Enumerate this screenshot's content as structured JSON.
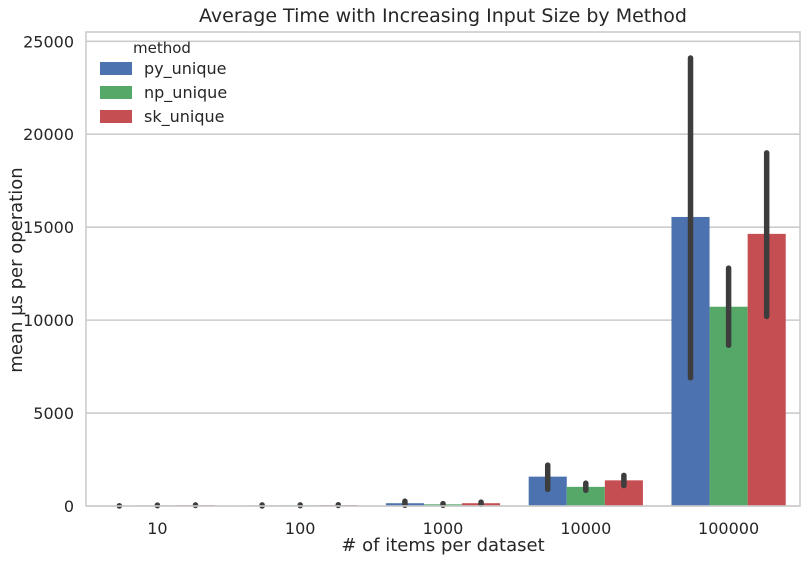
{
  "chart_data": {
    "type": "bar",
    "title": "Average Time with Increasing Input Size by Method",
    "xlabel": "# of items per dataset",
    "ylabel": "mean µs per operation",
    "categories": [
      "10",
      "100",
      "1000",
      "10000",
      "100000"
    ],
    "ylim": [
      0,
      25500
    ],
    "yticks": [
      0,
      5000,
      10000,
      15000,
      20000,
      25000
    ],
    "grid": "horizontal",
    "legend": {
      "title": "method",
      "placement": "top-left"
    },
    "series": [
      {
        "name": "py_unique",
        "color": "#4c72b0",
        "values": [
          5,
          30,
          150,
          1580,
          15550
        ],
        "error_low": [
          0,
          0,
          40,
          900,
          6900
        ],
        "error_high": [
          15,
          60,
          260,
          2200,
          24100
        ]
      },
      {
        "name": "np_unique",
        "color": "#55a868",
        "values": [
          35,
          40,
          90,
          1030,
          10720
        ],
        "error_low": [
          20,
          20,
          40,
          850,
          8650
        ],
        "error_high": [
          50,
          60,
          130,
          1230,
          12800
        ]
      },
      {
        "name": "sk_unique",
        "color": "#c44e52",
        "values": [
          45,
          50,
          150,
          1380,
          14640
        ],
        "error_low": [
          30,
          30,
          90,
          1100,
          10200
        ],
        "error_high": [
          60,
          70,
          210,
          1650,
          19000
        ]
      }
    ]
  }
}
